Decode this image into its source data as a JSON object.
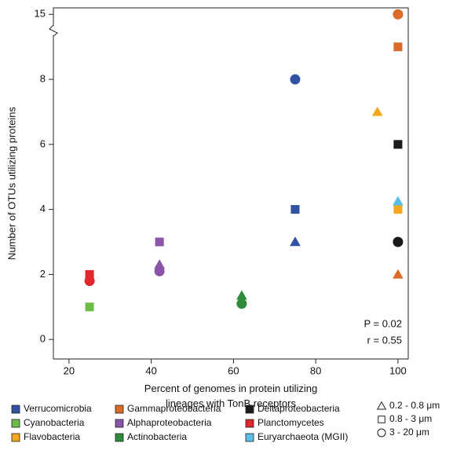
{
  "chart_data": {
    "type": "scatter",
    "x_label": "Percent of genomes in protein utilizing lineages with TonB receptors",
    "y_label": "Number of OTUs utilizing proteins",
    "xlim": [
      16.2,
      102.5
    ],
    "xticks": [
      20,
      40,
      60,
      80,
      100
    ],
    "ylim": [
      -0.6,
      15.2
    ],
    "yticks": [
      0,
      2,
      4,
      6,
      8,
      15
    ],
    "y_break": [
      9.5,
      14.5
    ],
    "annotations": [
      "P = 0.02",
      "r = 0.55"
    ],
    "size_classes": [
      {
        "label": "0.2 - 0.8 μm",
        "marker": "triangle"
      },
      {
        "label": "0.8 - 3 μm",
        "marker": "square"
      },
      {
        "label": "3 - 20 μm",
        "marker": "circle"
      }
    ],
    "series": [
      {
        "name": "Verrucomicrobia",
        "color": "#3152a3",
        "x": [
          75,
          75,
          75
        ],
        "values": [
          8,
          4,
          3
        ],
        "markers": [
          "circle",
          "square",
          "triangle"
        ]
      },
      {
        "name": "Cyanobacteria",
        "color": "#6cbd45",
        "x": [
          25
        ],
        "values": [
          1
        ],
        "markers": [
          "square"
        ]
      },
      {
        "name": "Flavobacteria",
        "color": "#f6a81c",
        "x": [
          95,
          100
        ],
        "values": [
          7,
          4
        ],
        "markers": [
          "triangle",
          "square"
        ]
      },
      {
        "name": "Gammaproteobacteria",
        "color": "#dc6b2a",
        "x": [
          100,
          100,
          100
        ],
        "values": [
          15,
          9,
          2
        ],
        "markers": [
          "circle",
          "square",
          "triangle"
        ]
      },
      {
        "name": "Alphaproteobacteria",
        "color": "#8a55a7",
        "x": [
          42,
          42,
          42
        ],
        "values": [
          3,
          2.3,
          2.1
        ],
        "markers": [
          "square",
          "triangle",
          "circle"
        ]
      },
      {
        "name": "Actinobacteria",
        "color": "#2e8c3b",
        "x": [
          62,
          62
        ],
        "values": [
          1.35,
          1.1
        ],
        "markers": [
          "triangle",
          "circle"
        ]
      },
      {
        "name": "Deltaproteobacteria",
        "color": "#1a1a1a",
        "x": [
          100,
          100
        ],
        "values": [
          6,
          3
        ],
        "markers": [
          "square",
          "circle"
        ]
      },
      {
        "name": "Planctomycetes",
        "color": "#e1262c",
        "x": [
          25,
          25
        ],
        "values": [
          2,
          1.8
        ],
        "markers": [
          "square",
          "circle"
        ]
      },
      {
        "name": "Euryarchaeota (MGII)",
        "color": "#5bbfe8",
        "x": [
          100
        ],
        "values": [
          4.25
        ],
        "markers": [
          "triangle"
        ]
      }
    ]
  }
}
